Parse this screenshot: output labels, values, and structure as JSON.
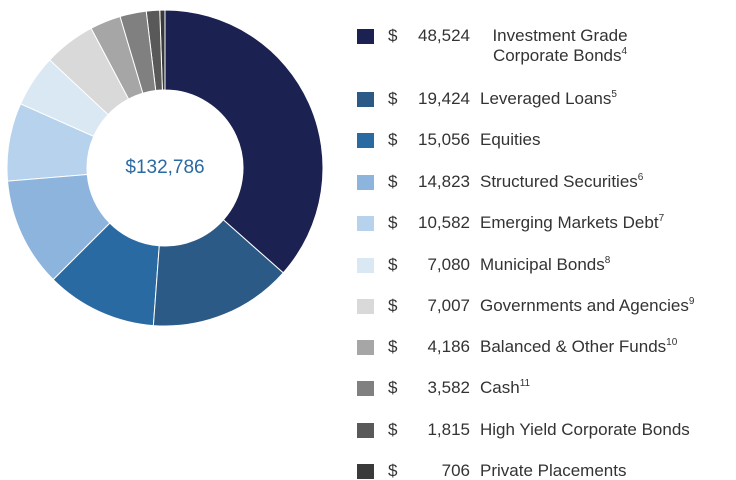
{
  "chart_data": {
    "type": "donut",
    "center_label": "$132,786",
    "currency_symbol": "$",
    "categories": [
      "Investment Grade Corporate Bonds",
      "Leveraged Loans",
      "Equities",
      "Structured Securities",
      "Emerging Markets Debt",
      "Municipal Bonds",
      "Governments and Agencies",
      "Balanced & Other Funds",
      "Cash",
      "High Yield Corporate Bonds",
      "Private Placements"
    ],
    "footnotes": [
      4,
      5,
      null,
      6,
      7,
      8,
      9,
      10,
      11,
      null,
      null
    ],
    "values": [
      48524,
      19424,
      15056,
      14823,
      10582,
      7080,
      7007,
      4186,
      3582,
      1815,
      706
    ],
    "value_labels": [
      "48,524",
      "19,424",
      "15,056",
      "14,823",
      "10,582",
      "7,080",
      "7,007",
      "4,186",
      "3,582",
      "1,815",
      "706"
    ],
    "colors": [
      "#1b2150",
      "#2b5a87",
      "#2a6aa3",
      "#8db4dc",
      "#b6d2ec",
      "#dae8f4",
      "#d9d9d9",
      "#a6a6a6",
      "#808080",
      "#595959",
      "#3a3a3a"
    ]
  }
}
